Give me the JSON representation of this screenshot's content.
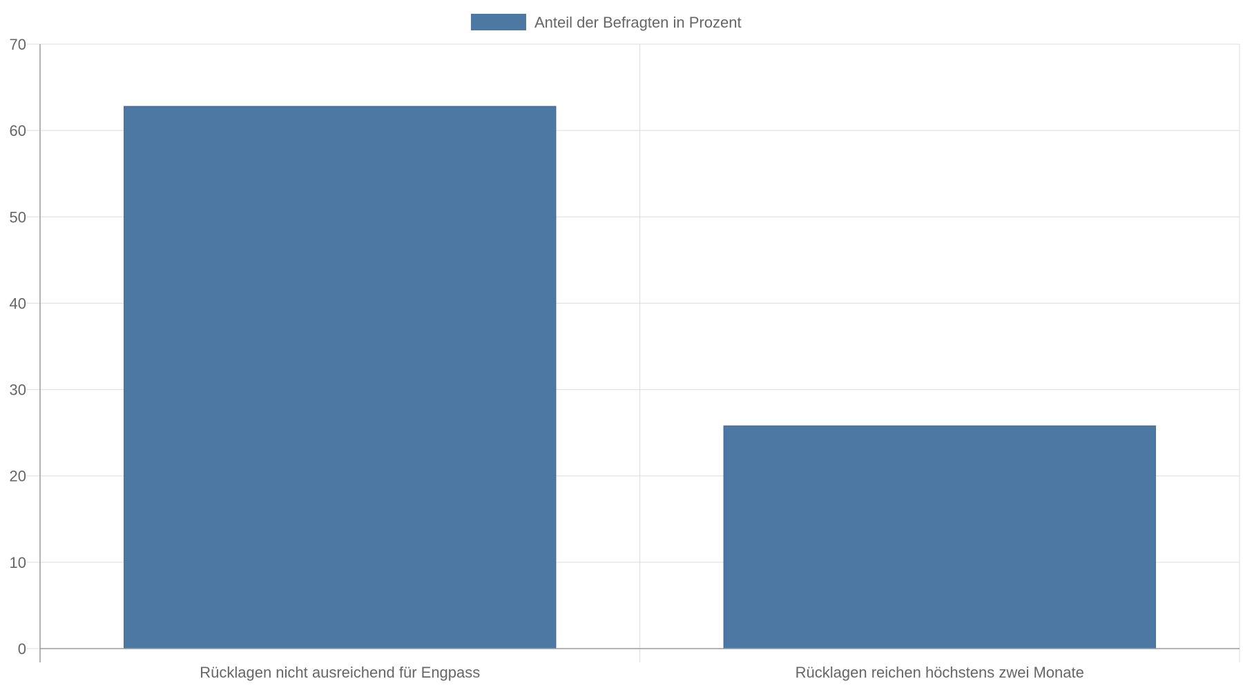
{
  "chart_data": {
    "type": "bar",
    "categories": [
      "Rücklagen nicht ausreichend für Engpass",
      "Rücklagen reichen höchstens zwei Monate"
    ],
    "series": [
      {
        "name": "Anteil der Befragten in Prozent",
        "values": [
          62.8,
          25.8
        ],
        "color": "#4e78a4"
      }
    ],
    "title": "",
    "xlabel": "",
    "ylabel": "",
    "ylim": [
      0,
      70
    ],
    "yticks": [
      0,
      10,
      20,
      30,
      40,
      50,
      60,
      70
    ],
    "grid": true,
    "legend_position": "top-center"
  }
}
